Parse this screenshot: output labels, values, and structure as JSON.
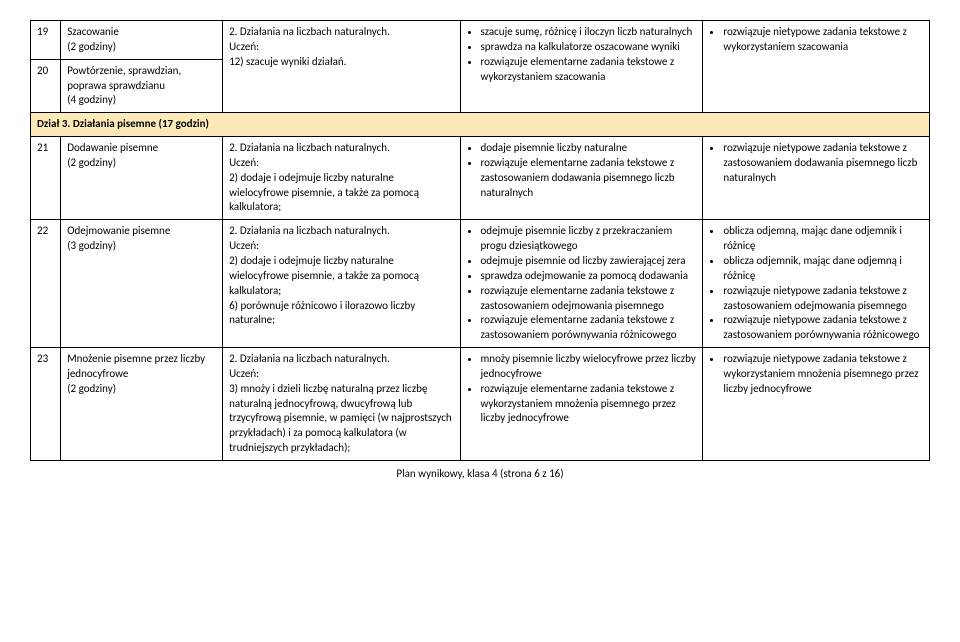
{
  "colors": {
    "section_bg": "#fce9b8",
    "border": "#000000",
    "text": "#000000",
    "background": "#ffffff"
  },
  "typography": {
    "font_family": "Calibri, Arial, sans-serif",
    "base_size_pt": 11,
    "line_height": 1.35
  },
  "rows": {
    "r19": {
      "num": "19",
      "topic": "Szacowanie\n(2 godziny)",
      "core_title": "2. Działania na liczbach naturalnych.",
      "core_label": "Uczeń:",
      "core_item1": "12) szacuje wyniki działań.",
      "basic_b1": "szacuje sumę, różnicę i iloczyn liczb naturalnych",
      "basic_b2": "sprawdza na kalkulatorze oszacowane wyniki",
      "basic_b3": "rozwiązuje elementarne zadania tekstowe z wykorzystaniem szacowania",
      "ext_b1": "rozwiązuje nietypowe zadania tekstowe z wykorzystaniem szacowania"
    },
    "r20": {
      "num": "20",
      "topic": "Powtórzenie, sprawdzian, poprawa sprawdzianu\n(4 godziny)"
    },
    "section": {
      "title": "Dział 3. Działania pisemne (17 godzin)"
    },
    "r21": {
      "num": "21",
      "topic": "Dodawanie pisemne\n(2 godziny)",
      "core_title": "2. Działania na liczbach naturalnych.",
      "core_label": "Uczeń:",
      "core_item1": "2) dodaje i odejmuje liczby naturalne wielocyfrowe pisemnie, a także za pomocą kalkulatora;",
      "basic_b1": "dodaje pisemnie liczby naturalne",
      "basic_b2": "rozwiązuje elementarne zadania tekstowe z zastosowaniem dodawania pisemnego liczb naturalnych",
      "ext_b1": "rozwiązuje nietypowe zadania tekstowe z zastosowaniem dodawania pisemnego liczb naturalnych"
    },
    "r22": {
      "num": "22",
      "topic": "Odejmowanie pisemne\n(3 godziny)",
      "core_title": "2. Działania na liczbach naturalnych.",
      "core_label": "Uczeń:",
      "core_item1": "2) dodaje i odejmuje liczby naturalne wielocyfrowe pisemnie, a także za pomocą kalkulatora;",
      "core_item2": "6) porównuje różnicowo i ilorazowo liczby naturalne;",
      "basic_b1": "odejmuje pisemnie liczby z przekraczaniem progu dziesiątkowego",
      "basic_b2": "odejmuje pisemnie od liczby zawierającej zera",
      "basic_b3": "sprawdza odejmowanie za pomocą dodawania",
      "basic_b4": "rozwiązuje elementarne zadania tekstowe z zastosowaniem odejmowania pisemnego",
      "basic_b5": "rozwiązuje elementarne zadania tekstowe z zastosowaniem porównywania różnicowego",
      "ext_b1": "oblicza odjemną, mając dane odjemnik i różnicę",
      "ext_b2": "oblicza odjemnik, mając dane odjemną i różnicę",
      "ext_b3": "rozwiązuje nietypowe zadania tekstowe z zastosowaniem odejmowania pisemnego",
      "ext_b4": "rozwiązuje nietypowe zadania tekstowe z zastosowaniem porównywania różnicowego"
    },
    "r23": {
      "num": "23",
      "topic": "Mnożenie pisemne przez liczby jednocyfrowe\n(2 godziny)",
      "core_title": "2. Działania na liczbach naturalnych.",
      "core_label": "Uczeń:",
      "core_item1": "3) mnoży i dzieli liczbę naturalną przez liczbę naturalną jednocyfrową, dwucyfrową lub trzycyfrową pisemnie, w pamięci (w najprostszych przykładach) i za pomocą kalkulatora (w trudniejszych przykładach);",
      "basic_b1": "mnoży pisemnie liczby wielocyfrowe przez liczby jednocyfrowe",
      "basic_b2": "rozwiązuje elementarne zadania tekstowe z wykorzystaniem mnożenia pisemnego przez liczby jednocyfrowe",
      "ext_b1": "rozwiązuje nietypowe zadania tekstowe z wykorzystaniem mnożenia pisemnego przez liczby jednocyfrowe"
    }
  },
  "footer": "Plan wynikowy, klasa 4 (strona 6 z 16)"
}
